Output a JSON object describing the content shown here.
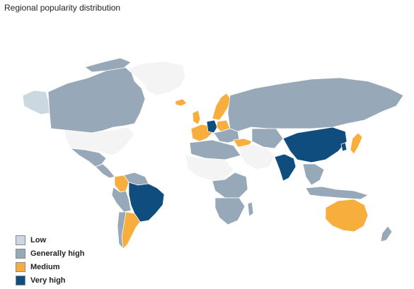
{
  "header": {
    "title": "Regional popularity distribution"
  },
  "colors": {
    "low": "#cbd8e2",
    "generally_high": "#97a9b8",
    "medium": "#f8ae3c",
    "very_high": "#0f4d7e",
    "no_data": "#f4f4f4"
  },
  "legend": {
    "items": [
      {
        "label": "Low",
        "color": "#cbd8e2"
      },
      {
        "label": "Generally high",
        "color": "#97a9b8"
      },
      {
        "label": "Medium",
        "color": "#f8ae3c"
      },
      {
        "label": "Very high",
        "color": "#0f4d7e"
      }
    ]
  },
  "regions": {
    "canada": "generally_high",
    "alaska": "low",
    "greenland": "no_data",
    "usa": "no_data",
    "mexico": "generally_high",
    "central_america": "generally_high",
    "colombia": "medium",
    "venezuela": "generally_high",
    "brazil": "very_high",
    "argentina": "medium",
    "chile": "generally_high",
    "peru": "generally_high",
    "uk": "medium",
    "iceland": "medium",
    "scandinavia": "medium",
    "germany": "very_high",
    "western_europe": "medium",
    "eastern_europe": "generally_high",
    "turkey": "medium",
    "russia": "generally_high",
    "middle_east": "no_data",
    "north_africa": "generally_high",
    "africa_other": "no_data",
    "central_africa": "generally_high",
    "southern_africa": "generally_high",
    "india": "very_high",
    "china": "very_high",
    "south_korea": "very_high",
    "japan": "medium",
    "southeast_asia": "generally_high",
    "indonesia": "generally_high",
    "australia": "medium",
    "new_zealand": "generally_high"
  }
}
